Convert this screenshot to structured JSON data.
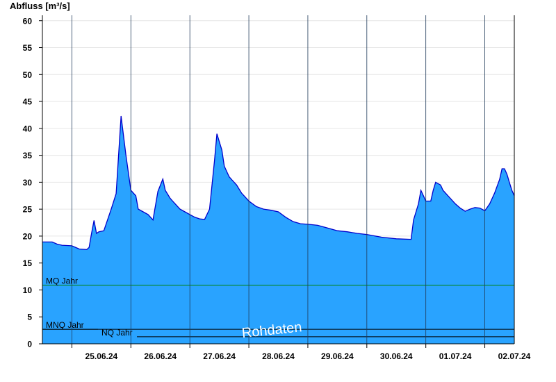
{
  "chart_data": {
    "type": "area",
    "ylabel": "Abfluss [m³/s]",
    "ylim": [
      0,
      61
    ],
    "yticks": [
      0,
      5,
      10,
      15,
      20,
      25,
      30,
      35,
      40,
      45,
      50,
      55,
      60
    ],
    "xlim": [
      "2024-06-24T12:00",
      "2024-07-02T12:00"
    ],
    "day_boundaries": [
      "2024-06-25T00:00",
      "2024-06-26T00:00",
      "2024-06-27T00:00",
      "2024-06-28T00:00",
      "2024-06-29T00:00",
      "2024-06-30T00:00",
      "2024-07-01T00:00",
      "2024-07-02T00:00"
    ],
    "x_tick_labels": [
      "25.06.24",
      "26.06.24",
      "27.06.24",
      "28.06.24",
      "29.06.24",
      "30.06.24",
      "01.07.24",
      "02.07.24"
    ],
    "grid": true,
    "fill_color": "#29a3ff",
    "line_color": "#0000cc",
    "series": [
      {
        "x": [
          "2024-06-24T12:00",
          "2024-06-24T16:00",
          "2024-06-24T18:00",
          "2024-06-24T20:00",
          "2024-06-25T00:00",
          "2024-06-25T03:00",
          "2024-06-25T06:00",
          "2024-06-25T07:00",
          "2024-06-25T08:00",
          "2024-06-25T09:00",
          "2024-06-25T10:00",
          "2024-06-25T11:00",
          "2024-06-25T13:00",
          "2024-06-25T16:00",
          "2024-06-25T18:00",
          "2024-06-25T20:00",
          "2024-06-25T22:00",
          "2024-06-26T00:00",
          "2024-06-26T02:00",
          "2024-06-26T03:00",
          "2024-06-26T05:00",
          "2024-06-26T07:00",
          "2024-06-26T09:00",
          "2024-06-26T11:00",
          "2024-06-26T13:00",
          "2024-06-26T14:00",
          "2024-06-26T16:00",
          "2024-06-26T17:00",
          "2024-06-26T18:00",
          "2024-06-26T19:00",
          "2024-06-26T20:00",
          "2024-06-26T22:00",
          "2024-06-27T00:00",
          "2024-06-27T02:00",
          "2024-06-27T04:00",
          "2024-06-27T06:00",
          "2024-06-27T08:00",
          "2024-06-27T10:00",
          "2024-06-27T11:00",
          "2024-06-27T12:00",
          "2024-06-27T13:00",
          "2024-06-27T14:00",
          "2024-06-27T15:00",
          "2024-06-27T16:00",
          "2024-06-27T17:00",
          "2024-06-27T19:00",
          "2024-06-27T21:00",
          "2024-06-28T00:00",
          "2024-06-28T03:00",
          "2024-06-28T06:00",
          "2024-06-28T09:00",
          "2024-06-28T12:00",
          "2024-06-28T15:00",
          "2024-06-28T18:00",
          "2024-06-28T21:00",
          "2024-06-29T00:00",
          "2024-06-29T04:00",
          "2024-06-29T08:00",
          "2024-06-29T12:00",
          "2024-06-29T16:00",
          "2024-06-29T20:00",
          "2024-06-30T00:00",
          "2024-06-30T06:00",
          "2024-06-30T12:00",
          "2024-06-30T18:00",
          "2024-06-30T19:00",
          "2024-06-30T21:00",
          "2024-06-30T22:00",
          "2024-06-30T23:00",
          "2024-07-01T00:00",
          "2024-07-01T02:00",
          "2024-07-01T03:00",
          "2024-07-01T04:00",
          "2024-07-01T06:00",
          "2024-07-01T07:00",
          "2024-07-01T09:00",
          "2024-07-01T12:00",
          "2024-07-01T14:00",
          "2024-07-01T16:00",
          "2024-07-01T18:00",
          "2024-07-01T20:00",
          "2024-07-01T22:00",
          "2024-07-02T00:00",
          "2024-07-02T02:00",
          "2024-07-02T04:00",
          "2024-07-02T06:00",
          "2024-07-02T07:00",
          "2024-07-02T08:00",
          "2024-07-02T09:00",
          "2024-07-02T10:00",
          "2024-07-02T11:00",
          "2024-07-02T12:00"
        ],
        "y": [
          18.9,
          18.9,
          18.5,
          18.3,
          18.2,
          17.6,
          17.5,
          17.9,
          20.5,
          22.9,
          20.5,
          20.8,
          21.0,
          25.0,
          27.9,
          42.3,
          35.0,
          28.5,
          27.5,
          25.0,
          24.5,
          24.0,
          23.0,
          28.3,
          30.6,
          28.5,
          27.0,
          26.5,
          26.0,
          25.5,
          25.0,
          24.5,
          24.0,
          23.5,
          23.2,
          23.1,
          25.0,
          34.0,
          39.0,
          37.5,
          36.0,
          33.0,
          32.0,
          31.0,
          30.5,
          29.5,
          28.0,
          26.5,
          25.5,
          25.0,
          24.8,
          24.5,
          23.5,
          22.7,
          22.3,
          22.2,
          22.0,
          21.5,
          21.0,
          20.8,
          20.5,
          20.3,
          19.8,
          19.5,
          19.4,
          23.0,
          26.0,
          28.5,
          27.5,
          26.5,
          26.5,
          28.5,
          30.0,
          29.5,
          28.5,
          27.5,
          26.0,
          25.2,
          24.6,
          25.0,
          25.3,
          25.2,
          24.7,
          26.0,
          28.0,
          30.5,
          32.5,
          32.5,
          31.5,
          30.0,
          28.5,
          27.5
        ]
      }
    ],
    "reference_lines": [
      {
        "label": "MQ Jahr",
        "value": 10.9,
        "color": "#008000"
      },
      {
        "label": "MNQ Jahr",
        "value": 2.7,
        "color": "#000000"
      },
      {
        "label": "NQ Jahr",
        "value": 1.3,
        "color": "#000000"
      }
    ]
  },
  "watermark": "Rohdaten"
}
